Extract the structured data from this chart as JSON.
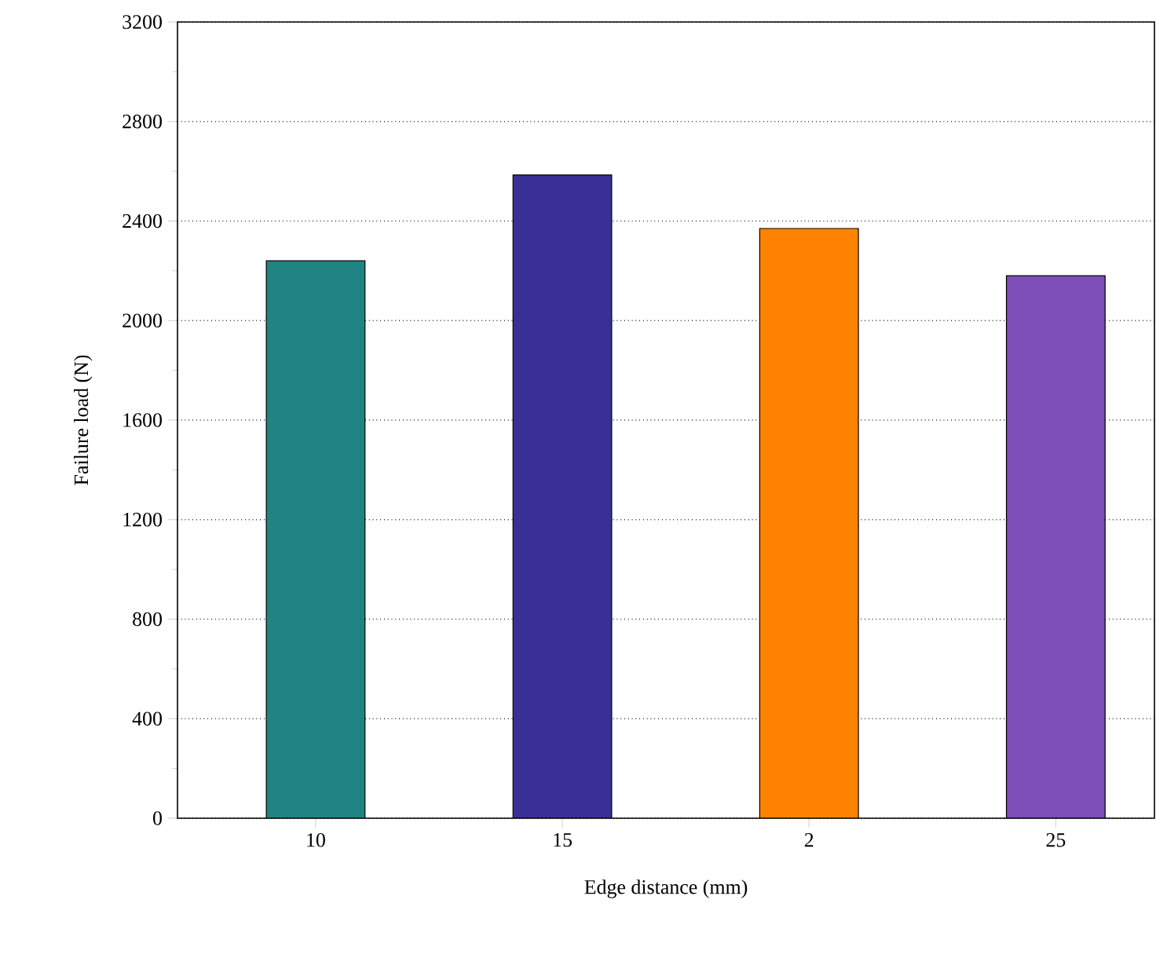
{
  "chart_data": {
    "type": "bar",
    "xlabel": "Edge distance (mm)",
    "ylabel": "Failure load (N)",
    "categories": [
      "10",
      "15",
      "2",
      "25"
    ],
    "values": [
      2240,
      2585,
      2370,
      2180
    ],
    "colors": [
      "#208482",
      "#3a2f96",
      "#ff8300",
      "#7d4db8"
    ],
    "ylim": [
      0,
      3200
    ],
    "yticks": [
      0,
      400,
      800,
      1200,
      1600,
      2000,
      2400,
      2800,
      3200
    ],
    "grid": "y"
  }
}
